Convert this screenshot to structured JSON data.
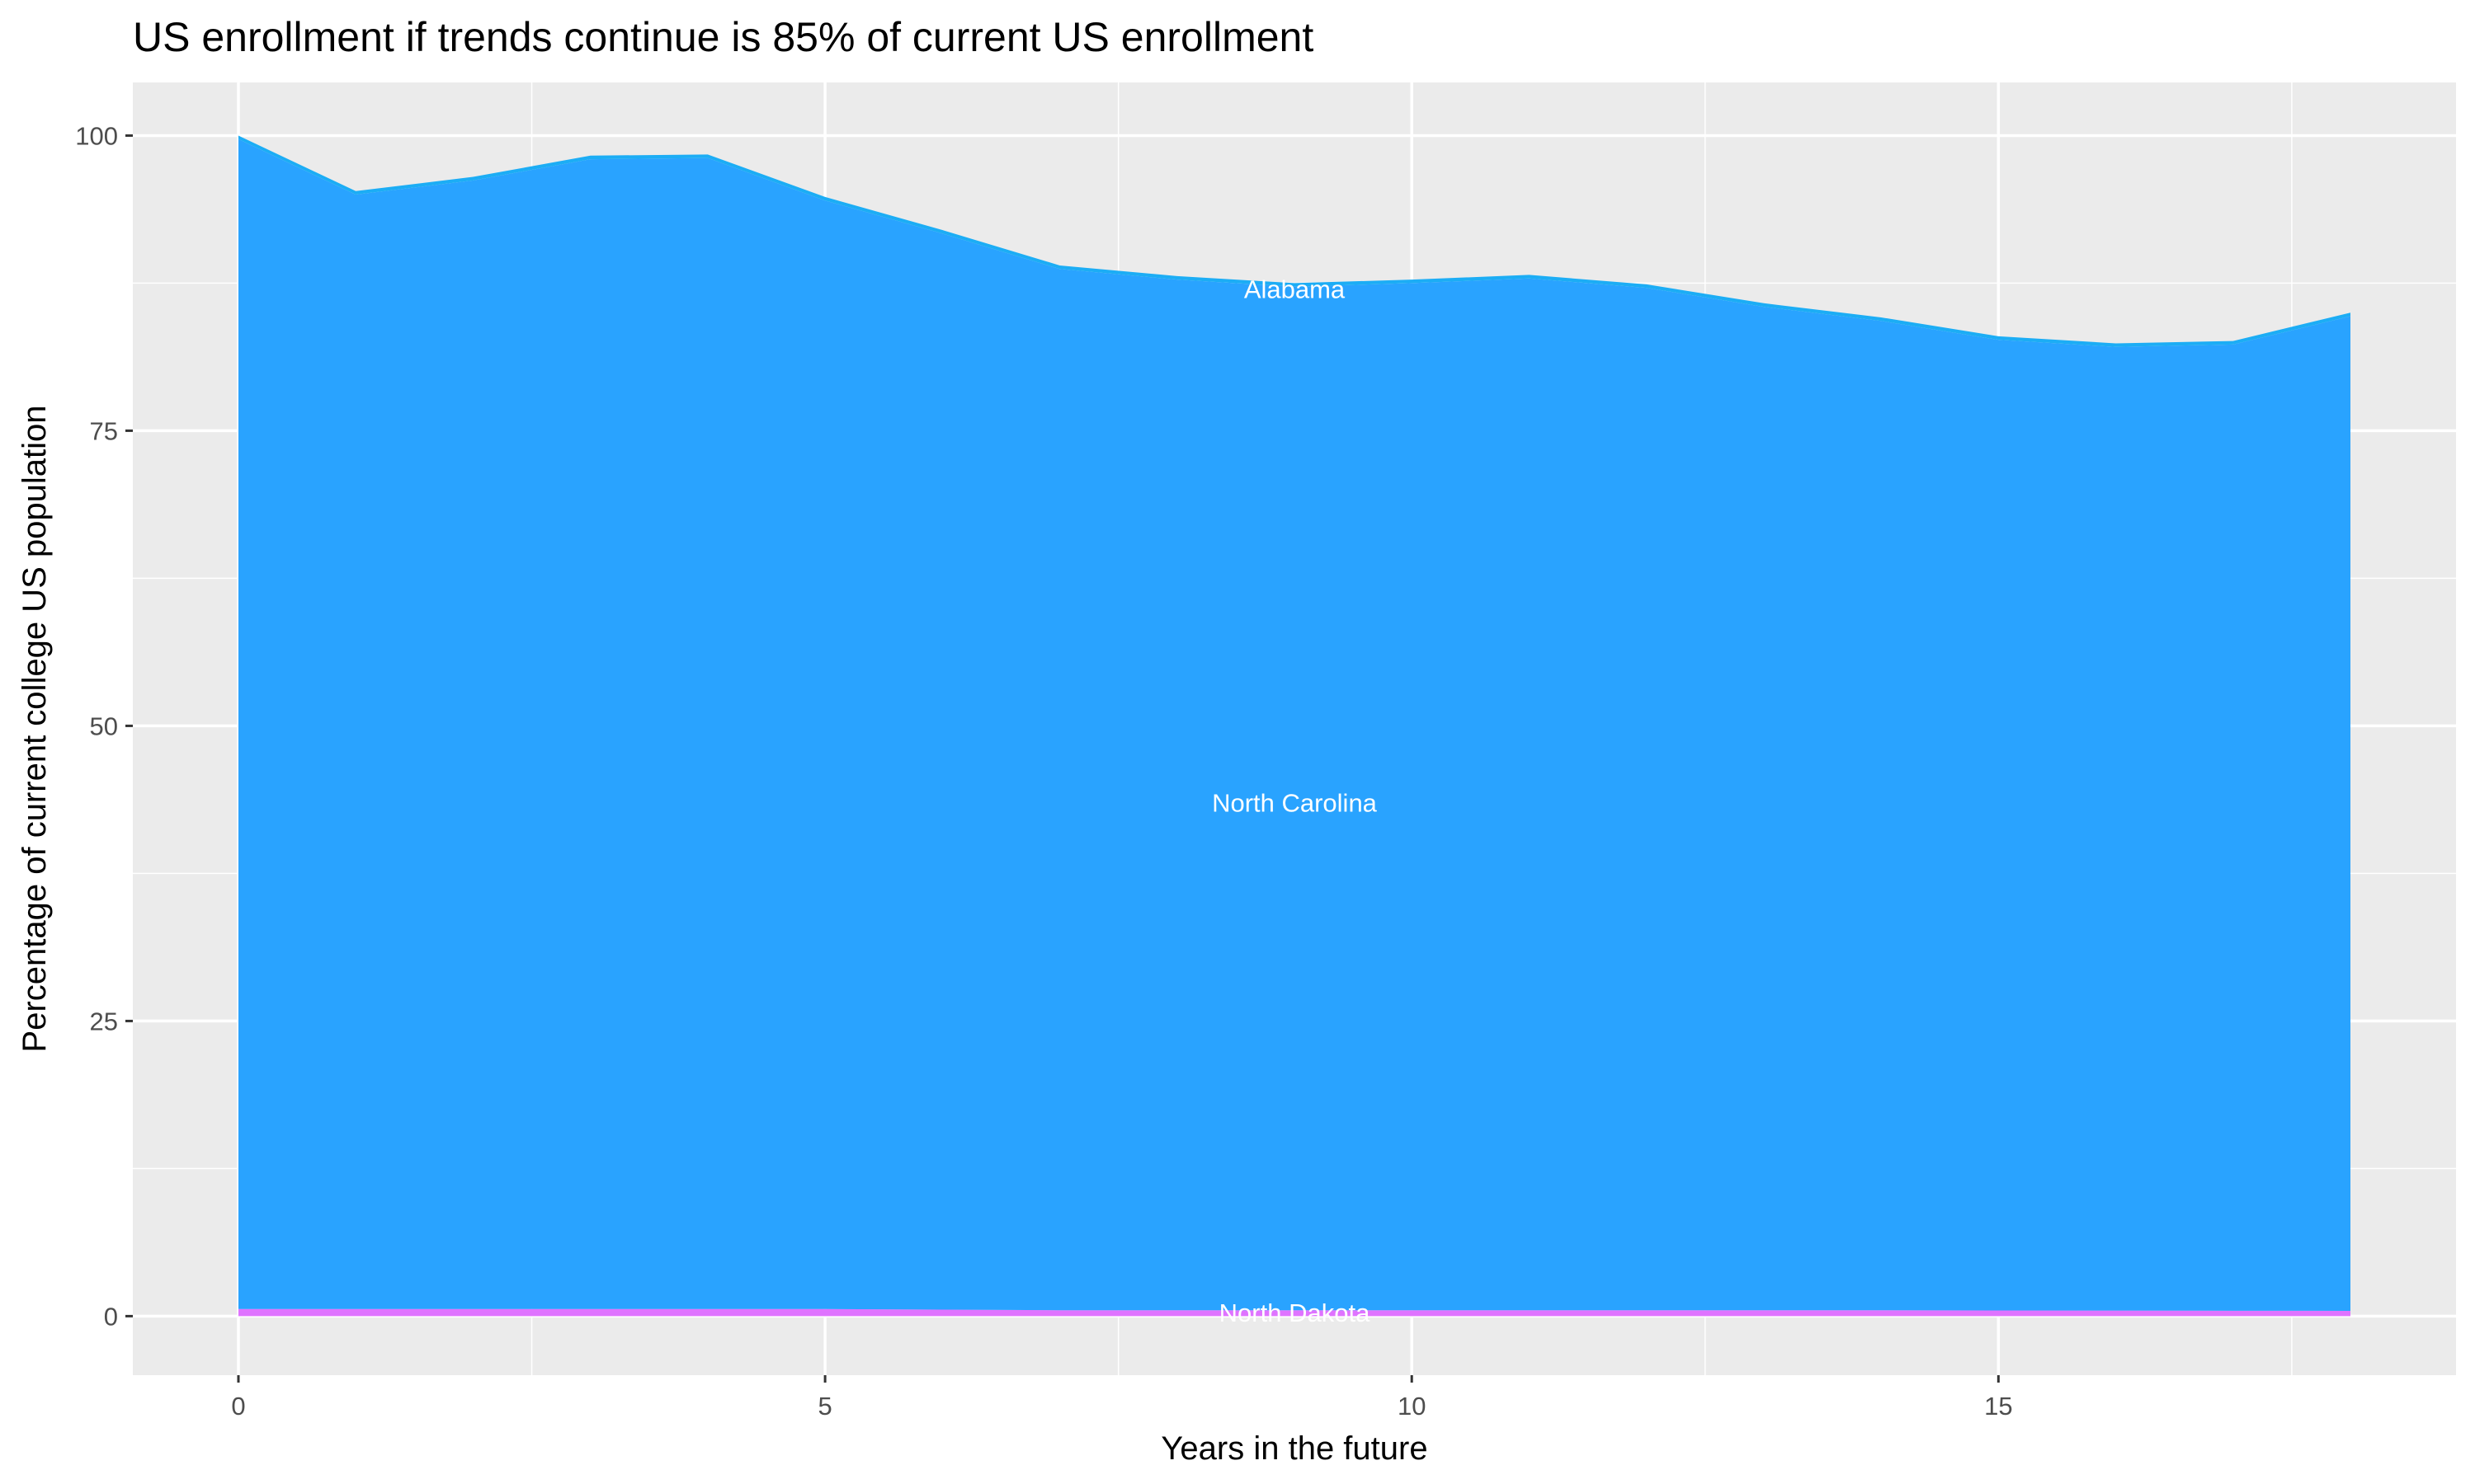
{
  "chart_data": {
    "type": "area",
    "stacked": true,
    "title": "US enrollment if trends continue is 85% of current US enrollment",
    "xlabel": "Years in the future",
    "ylabel": "Percentage of current college US population",
    "xlim": [
      -0.9,
      18.9
    ],
    "ylim": [
      -5,
      104.5
    ],
    "xticks": [
      0,
      5,
      10,
      15
    ],
    "yticks": [
      0,
      25,
      50,
      75,
      100
    ],
    "grid": true,
    "legend": "none",
    "x": [
      0,
      1,
      2,
      3,
      4,
      5,
      6,
      7,
      8,
      9,
      10,
      11,
      12,
      13,
      14,
      15,
      16,
      17,
      18
    ],
    "series": [
      {
        "name": "North Dakota",
        "color": "#DF73FF",
        "values": [
          0.6,
          0.6,
          0.6,
          0.6,
          0.6,
          0.6,
          0.55,
          0.5,
          0.5,
          0.5,
          0.5,
          0.5,
          0.5,
          0.5,
          0.5,
          0.48,
          0.47,
          0.46,
          0.45
        ]
      },
      {
        "name": "North Carolina",
        "color": "#29A3FF",
        "values": [
          99.1,
          94.4,
          95.6,
          97.4,
          97.5,
          93.9,
          91.15,
          88.2,
          87.3,
          86.7,
          87.0,
          87.4,
          86.6,
          85.0,
          83.8,
          82.22,
          81.63,
          81.84,
          84.25
        ]
      },
      {
        "name": "Alabama",
        "color": "#1CADF5",
        "values": [
          0.3,
          0.3,
          0.3,
          0.3,
          0.3,
          0.3,
          0.3,
          0.3,
          0.3,
          0.3,
          0.3,
          0.3,
          0.3,
          0.3,
          0.3,
          0.3,
          0.3,
          0.3,
          0.3
        ]
      }
    ],
    "annotations": [
      {
        "text": "Alabama",
        "x": 9,
        "y": 87
      },
      {
        "text": "North Carolina",
        "x": 9,
        "y": 43.5
      },
      {
        "text": "North Dakota",
        "x": 9,
        "y": 0.3
      }
    ],
    "colors": {
      "panel": "#EBEBEB",
      "grid": "#FFFFFF"
    }
  }
}
